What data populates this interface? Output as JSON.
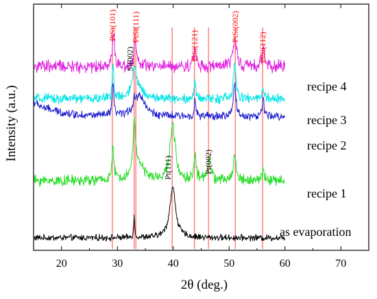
{
  "chart_data": {
    "type": "line",
    "title": "",
    "xlabel": "2θ (deg.)",
    "ylabel": "Intensity (a.u.)",
    "xlim": [
      15,
      75
    ],
    "x_ticks": [
      20,
      30,
      40,
      50,
      60,
      70
    ],
    "y_ticks_shown": false,
    "grid": false,
    "legend": "none (series labelled at right end of each trace)",
    "series": [
      {
        "name": "as evaporation",
        "color": "#000000",
        "offset": 0.0,
        "baseline": 0.5,
        "noise": 0.35,
        "x_range": [
          15,
          60
        ],
        "peaks": [
          {
            "x": 33.0,
            "height": 3.0,
            "width": 0.12
          },
          {
            "x": 39.9,
            "height": 7.0,
            "width": 0.65
          }
        ]
      },
      {
        "name": "recipe 1",
        "color": "#22dd22",
        "offset": 8.0,
        "baseline": 0.5,
        "noise": 0.6,
        "x_range": [
          15,
          60
        ],
        "peaks": [
          {
            "x": 29.2,
            "height": 4.0,
            "width": 0.25
          },
          {
            "x": 33.0,
            "height": 7.0,
            "width": 0.2
          },
          {
            "x": 33.6,
            "height": 3.0,
            "width": 1.0
          },
          {
            "x": 39.9,
            "height": 8.0,
            "width": 0.55
          },
          {
            "x": 43.9,
            "height": 3.5,
            "width": 0.25
          },
          {
            "x": 46.4,
            "height": 3.0,
            "width": 0.35
          },
          {
            "x": 51.0,
            "height": 3.5,
            "width": 0.3
          },
          {
            "x": 56.1,
            "height": 1.5,
            "width": 0.25
          }
        ]
      },
      {
        "name": "recipe 2",
        "color": "#1a1acc",
        "offset": 17.0,
        "baseline": 0.5,
        "noise": 0.45,
        "x_range": [
          15,
          60
        ],
        "peaks": [
          {
            "x": 29.2,
            "height": 4.5,
            "width": 0.18
          },
          {
            "x": 33.0,
            "height": 1.5,
            "width": 0.15
          },
          {
            "x": 34.0,
            "height": 3.0,
            "width": 1.1
          },
          {
            "x": 43.9,
            "height": 2.0,
            "width": 0.2
          },
          {
            "x": 51.0,
            "height": 5.0,
            "width": 0.25
          },
          {
            "x": 56.1,
            "height": 2.5,
            "width": 0.2
          }
        ],
        "start_rise": 2.0
      },
      {
        "name": "recipe 3",
        "color": "#00e5e5",
        "offset": 19.5,
        "baseline": 0.5,
        "noise": 0.55,
        "x_range": [
          15,
          60
        ],
        "peaks": [
          {
            "x": 29.2,
            "height": 4.5,
            "width": 0.18
          },
          {
            "x": 33.0,
            "height": 3.5,
            "width": 0.4
          },
          {
            "x": 33.8,
            "height": 1.5,
            "width": 1.0
          },
          {
            "x": 43.9,
            "height": 2.0,
            "width": 0.2
          },
          {
            "x": 51.0,
            "height": 5.0,
            "width": 0.25
          },
          {
            "x": 56.1,
            "height": 1.5,
            "width": 0.2
          }
        ]
      },
      {
        "name": "recipe 4",
        "color": "#e020e0",
        "offset": 24.0,
        "baseline": 0.5,
        "noise": 0.7,
        "x_range": [
          15,
          60
        ],
        "peaks": [
          {
            "x": 29.3,
            "height": 4.5,
            "width": 0.25
          },
          {
            "x": 33.2,
            "height": 3.5,
            "width": 0.3
          },
          {
            "x": 43.9,
            "height": 2.5,
            "width": 0.3
          },
          {
            "x": 51.0,
            "height": 4.5,
            "width": 0.35
          },
          {
            "x": 56.1,
            "height": 2.5,
            "width": 0.3
          }
        ]
      }
    ],
    "reference_lines": [
      {
        "x": 29.1,
        "color": "#ff4040",
        "label": "PtSi(101)",
        "label_color": "#ff0000",
        "label_top": true
      },
      {
        "x": 33.3,
        "color": "#ff4040",
        "label": "PtSi(111)",
        "label_color": "#ff0000",
        "label_top": true
      },
      {
        "x": 43.8,
        "color": "#ff4040",
        "label": "PtSi(121)",
        "label_color": "#ff0000",
        "label_top": true
      },
      {
        "x": 51.1,
        "color": "#ff4040",
        "label": "PtSi(002)",
        "label_color": "#ff0000",
        "label_top": true
      },
      {
        "x": 56.0,
        "color": "#ff4040",
        "label": "PtSi(112)",
        "label_color": "#ff0000",
        "label_top": true
      },
      {
        "x": 33.0,
        "color": "#ff4040",
        "label": "Si(002)",
        "label_color": "#000000",
        "label_top": false
      },
      {
        "x": 39.8,
        "color": "#ff4040",
        "label": "Pt(111)",
        "label_color": "#000000",
        "label_top": false
      },
      {
        "x": 46.3,
        "color": "#ff4040",
        "label": "Pt(002)",
        "label_color": "#000000",
        "label_top": false
      }
    ]
  }
}
